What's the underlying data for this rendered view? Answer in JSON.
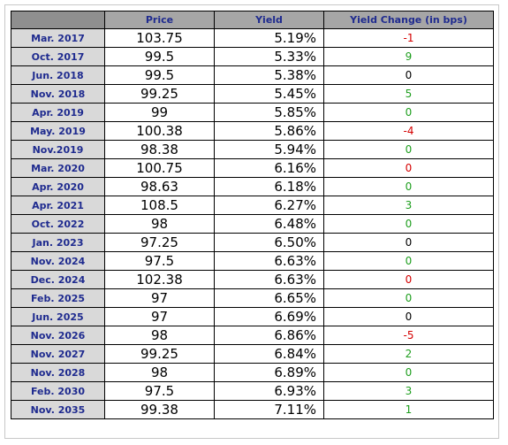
{
  "chart_data": {
    "type": "table",
    "columns": [
      "",
      "Price",
      "Yield",
      "Yield Change (in bps)"
    ],
    "rows": [
      {
        "date": "Mar. 2017",
        "price": "103.75",
        "yield": "5.19%",
        "change": "-1"
      },
      {
        "date": "Oct. 2017",
        "price": "99.5",
        "yield": "5.33%",
        "change": "9"
      },
      {
        "date": "Jun. 2018",
        "price": "99.5",
        "yield": "5.38%",
        "change": "0"
      },
      {
        "date": "Nov. 2018",
        "price": "99.25",
        "yield": "5.45%",
        "change": "5"
      },
      {
        "date": "Apr. 2019",
        "price": "99",
        "yield": "5.85%",
        "change": "0"
      },
      {
        "date": "May. 2019",
        "price": "100.38",
        "yield": "5.86%",
        "change": "-4"
      },
      {
        "date": "Nov.2019",
        "price": "98.38",
        "yield": "5.94%",
        "change": "0"
      },
      {
        "date": "Mar. 2020",
        "price": "100.75",
        "yield": "6.16%",
        "change": "0"
      },
      {
        "date": "Apr. 2020",
        "price": "98.63",
        "yield": "6.18%",
        "change": "0"
      },
      {
        "date": "Apr. 2021",
        "price": "108.5",
        "yield": "6.27%",
        "change": "3"
      },
      {
        "date": "Oct. 2022",
        "price": "98",
        "yield": "6.48%",
        "change": "0"
      },
      {
        "date": "Jan. 2023",
        "price": "97.25",
        "yield": "6.50%",
        "change": "0"
      },
      {
        "date": "Nov. 2024",
        "price": "97.5",
        "yield": "6.63%",
        "change": "0"
      },
      {
        "date": "Dec. 2024",
        "price": "102.38",
        "yield": "6.63%",
        "change": "0"
      },
      {
        "date": "Feb. 2025",
        "price": "97",
        "yield": "6.65%",
        "change": "0"
      },
      {
        "date": "Jun. 2025",
        "price": "97",
        "yield": "6.69%",
        "change": "0"
      },
      {
        "date": "Nov. 2026",
        "price": "98",
        "yield": "6.86%",
        "change": "-5"
      },
      {
        "date": "Nov. 2027",
        "price": "99.25",
        "yield": "6.84%",
        "change": "2"
      },
      {
        "date": "Nov. 2028",
        "price": "98",
        "yield": "6.89%",
        "change": "0"
      },
      {
        "date": "Feb. 2030",
        "price": "97.5",
        "yield": "6.93%",
        "change": "3"
      },
      {
        "date": "Nov. 2035",
        "price": "99.38",
        "yield": "7.11%",
        "change": "1"
      }
    ],
    "change_colors": [
      "red",
      "green",
      "black",
      "green",
      "green",
      "red",
      "green",
      "red",
      "green",
      "green",
      "green",
      "black",
      "green",
      "red",
      "green",
      "black",
      "red",
      "green",
      "green",
      "green",
      "green"
    ]
  },
  "colors": {
    "red": "#d40000",
    "green": "#1e9e1e",
    "black": "#000000",
    "header_text": "#1f2b8f"
  }
}
